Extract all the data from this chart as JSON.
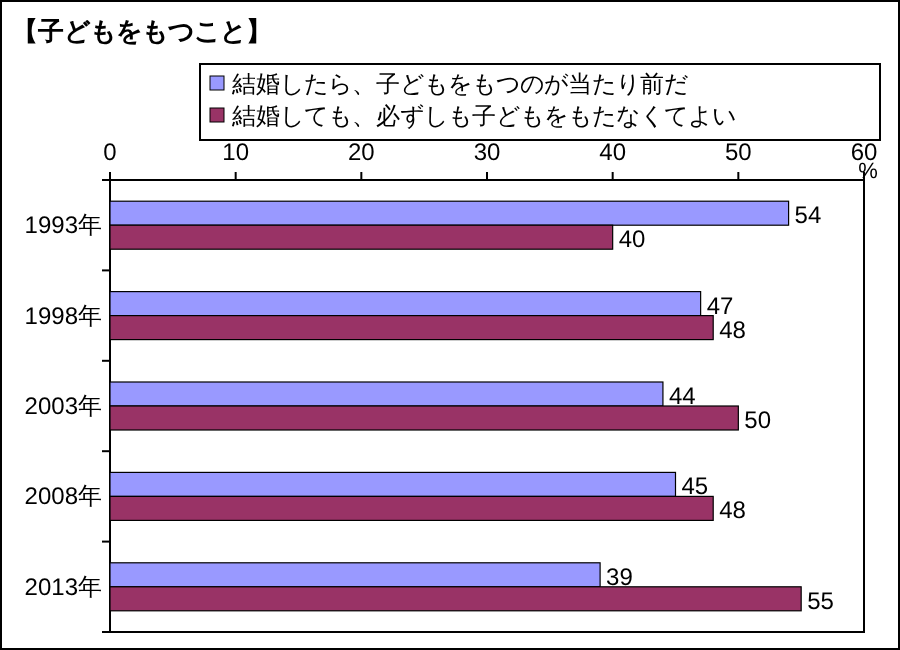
{
  "chart_data": {
    "type": "bar",
    "orientation": "horizontal",
    "title": "【子どもをもつこと】",
    "xlabel": "%",
    "categories": [
      "1993年",
      "1998年",
      "2003年",
      "2008年",
      "2013年"
    ],
    "series": [
      {
        "name": "結婚したら、子どもをもつのが当たり前だ",
        "color": "#9999ff",
        "values": [
          54,
          47,
          44,
          45,
          39
        ]
      },
      {
        "name": "結婚しても、必ずしも子どもをもたなくてよい",
        "color": "#993366",
        "values": [
          40,
          48,
          50,
          48,
          55
        ]
      }
    ],
    "xlim": [
      0,
      60
    ],
    "xticks": [
      0,
      10,
      20,
      30,
      40,
      50,
      60
    ],
    "data_labels": true,
    "legend": "top",
    "grid": false
  }
}
